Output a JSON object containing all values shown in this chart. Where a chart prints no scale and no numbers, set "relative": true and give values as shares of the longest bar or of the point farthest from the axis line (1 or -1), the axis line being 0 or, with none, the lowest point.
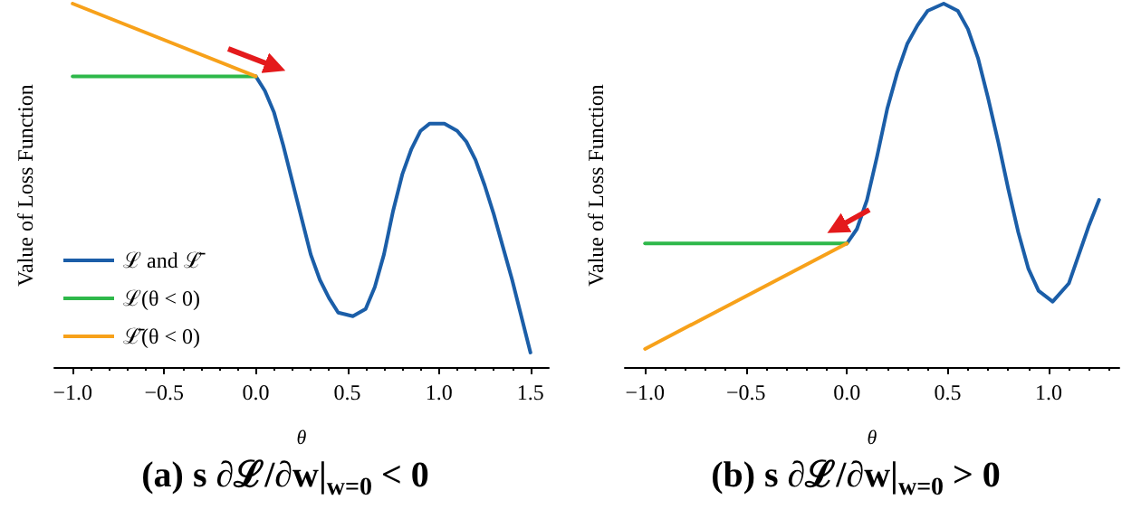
{
  "chart_data": [
    {
      "type": "line",
      "title": "(a) s ∂ℒ/∂w|$_{w=0}$ < 0",
      "xlabel": "θ",
      "ylabel": "Value of Loss Function",
      "relative": true,
      "legend": "bottom left",
      "tick_labels": "x",
      "grid": false,
      "marker": "none",
      "line_style": "solid",
      "xlim": [
        -1.1,
        1.6
      ],
      "xticks": [
        {
          "value": -1,
          "label": "−1.0"
        },
        {
          "value": -0.5,
          "label": "−0.5"
        },
        {
          "value": 0,
          "label": "0.0"
        },
        {
          "value": 0.5,
          "label": "0.5"
        },
        {
          "value": 1,
          "label": "1.0"
        },
        {
          "value": 1.5,
          "label": "1.5"
        }
      ],
      "series": [
        {
          "name": "ℒ and ℒ̄",
          "color": "#1b5ea8",
          "x": [
            0,
            0.05,
            0.1,
            0.15,
            0.2,
            0.25,
            0.3,
            0.35,
            0.4,
            0.45,
            0.53,
            0.6,
            0.65,
            0.7,
            0.75,
            0.8,
            0.85,
            0.9,
            0.95,
            1.03,
            1.1,
            1.15,
            1.2,
            1.25,
            1.3,
            1.35,
            1.4,
            1.45,
            1.5
          ],
          "values": [
            0.8,
            0.76,
            0.7,
            0.61,
            0.51,
            0.41,
            0.31,
            0.24,
            0.19,
            0.15,
            0.14,
            0.16,
            0.22,
            0.31,
            0.43,
            0.53,
            0.6,
            0.65,
            0.67,
            0.67,
            0.65,
            0.62,
            0.57,
            0.5,
            0.42,
            0.33,
            0.24,
            0.14,
            0.04
          ]
        },
        {
          "name": "ℒ(θ < 0)",
          "color": "#2eb84a",
          "x": [
            -1,
            0
          ],
          "values": [
            0.8,
            0.8
          ]
        },
        {
          "name": "ℒ̄(θ < 0)",
          "color": "#f7a11a",
          "x": [
            -1,
            0
          ],
          "values": [
            1,
            0.8
          ]
        }
      ]
    },
    {
      "type": "line",
      "title": "(b) s ∂ℒ/∂w|$_{w=0}$ > 0",
      "xlabel": "θ",
      "ylabel": "Value of Loss Function",
      "relative": true,
      "tick_labels": "x",
      "grid": false,
      "marker": "none",
      "line_style": "solid",
      "xlim": [
        -1.1,
        1.35
      ],
      "xticks": [
        {
          "value": -1,
          "label": "−1.0"
        },
        {
          "value": -0.5,
          "label": "−0.5"
        },
        {
          "value": 0,
          "label": "0.0"
        },
        {
          "value": 0.5,
          "label": "0.5"
        },
        {
          "value": 1,
          "label": "1.0"
        }
      ],
      "series": [
        {
          "color": "#1b5ea8",
          "x": [
            0,
            0.05,
            0.1,
            0.15,
            0.2,
            0.25,
            0.3,
            0.35,
            0.4,
            0.48,
            0.55,
            0.6,
            0.65,
            0.7,
            0.75,
            0.8,
            0.85,
            0.9,
            0.95,
            1.02,
            1.1,
            1.15,
            1.2,
            1.25
          ],
          "values": [
            0.34,
            0.38,
            0.46,
            0.58,
            0.71,
            0.81,
            0.89,
            0.94,
            0.98,
            1,
            0.98,
            0.93,
            0.85,
            0.74,
            0.62,
            0.49,
            0.37,
            0.27,
            0.21,
            0.18,
            0.23,
            0.31,
            0.39,
            0.46
          ]
        },
        {
          "color": "#2eb84a",
          "x": [
            -1,
            0
          ],
          "values": [
            0.34,
            0.34
          ]
        },
        {
          "color": "#f7a11a",
          "x": [
            -1,
            0
          ],
          "values": [
            0.05,
            0.34
          ]
        }
      ]
    }
  ]
}
